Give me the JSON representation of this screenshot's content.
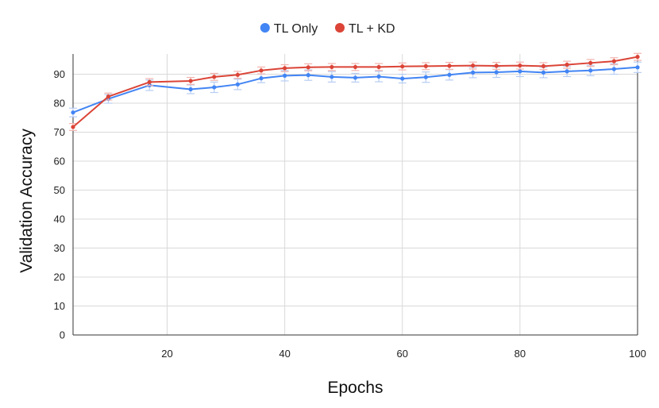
{
  "chart_data": {
    "type": "line",
    "title": "",
    "xlabel": "Epochs",
    "ylabel": "Validation Accuracy",
    "xlim": [
      4,
      100
    ],
    "ylim": [
      0,
      97
    ],
    "x_ticks": [
      20,
      40,
      60,
      80,
      100
    ],
    "y_ticks": [
      0,
      10,
      20,
      30,
      40,
      50,
      60,
      70,
      80,
      90
    ],
    "grid": true,
    "legend_position": "top-center",
    "x": [
      4,
      10,
      17,
      24,
      28,
      32,
      36,
      40,
      44,
      48,
      52,
      56,
      60,
      64,
      68,
      72,
      76,
      80,
      84,
      88,
      92,
      96,
      100
    ],
    "series": [
      {
        "name": "TL Only",
        "color": "#4285f4",
        "error_color": "#b7cdf3",
        "values": [
          76.8,
          81.5,
          86.2,
          84.8,
          85.5,
          86.5,
          88.6,
          89.5,
          89.7,
          89.1,
          88.8,
          89.2,
          88.5,
          89.0,
          89.8,
          90.6,
          90.7,
          91.0,
          90.6,
          91.0,
          91.3,
          91.8,
          92.4
        ],
        "errors": [
          1.5,
          1.5,
          1.8,
          1.5,
          1.8,
          1.8,
          1.5,
          1.8,
          1.8,
          1.8,
          1.5,
          1.8,
          1.5,
          1.8,
          1.8,
          1.8,
          1.8,
          1.8,
          1.8,
          1.8,
          1.8,
          1.8,
          1.8
        ]
      },
      {
        "name": "TL + KD",
        "color": "#db4437",
        "error_color": "#f2b3ad",
        "values": [
          71.8,
          82.3,
          87.3,
          87.7,
          89.1,
          89.8,
          91.3,
          92.1,
          92.4,
          92.5,
          92.5,
          92.5,
          92.7,
          92.8,
          92.9,
          93.0,
          92.9,
          93.0,
          92.8,
          93.3,
          93.9,
          94.5,
          96.0
        ],
        "errors": [
          1.2,
          1.2,
          1.2,
          1.2,
          1.2,
          1.2,
          1.2,
          1.2,
          1.2,
          1.2,
          1.2,
          1.2,
          1.2,
          1.2,
          1.2,
          1.2,
          1.2,
          1.2,
          1.2,
          1.2,
          1.2,
          1.2,
          1.2
        ]
      }
    ]
  }
}
